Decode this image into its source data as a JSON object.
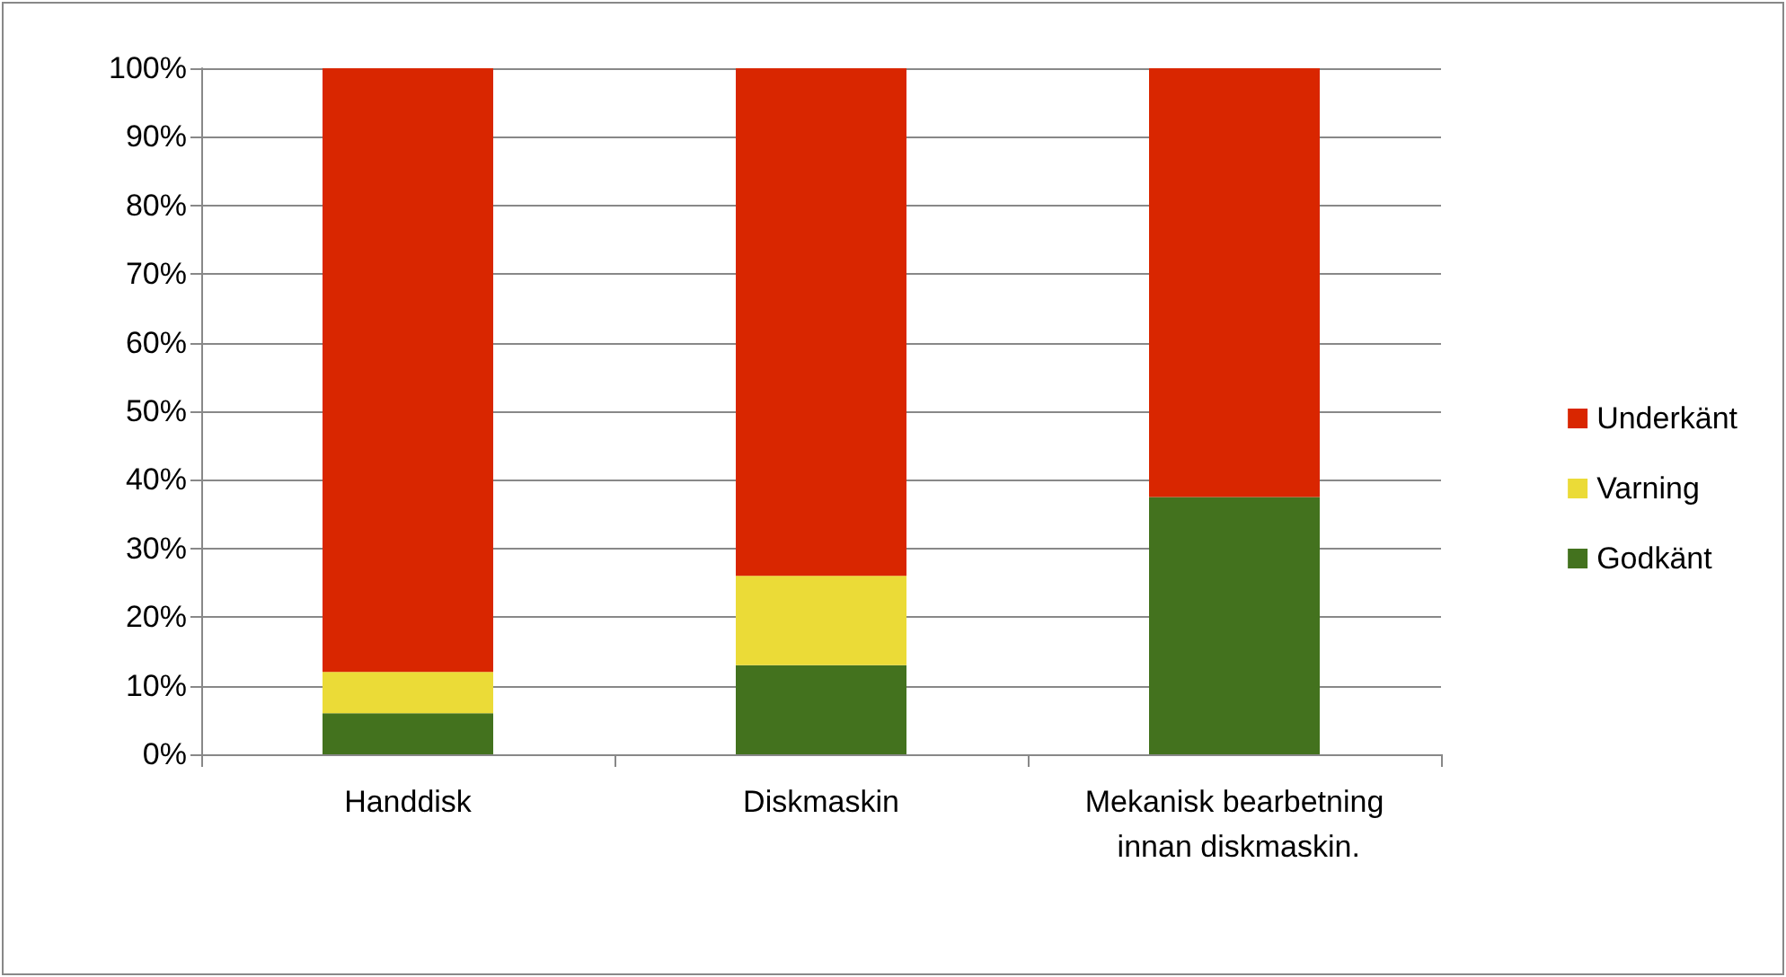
{
  "chart_data": {
    "type": "bar",
    "stacked": true,
    "categories": [
      "Handdisk",
      "Diskmaskin",
      "Mekanisk bearbetning innan diskmaskin."
    ],
    "series": [
      {
        "name": "Godkänt",
        "color": "#43721e",
        "values": [
          6,
          13,
          37.5
        ]
      },
      {
        "name": "Varning",
        "color": "#ebdb37",
        "values": [
          6,
          13,
          0
        ]
      },
      {
        "name": "Underkänt",
        "color": "#d92600",
        "values": [
          88,
          74,
          62.5
        ]
      }
    ],
    "ylim": [
      0,
      100
    ],
    "yticks": [
      {
        "value": 0,
        "label": "0%"
      },
      {
        "value": 10,
        "label": "10%"
      },
      {
        "value": 20,
        "label": "20%"
      },
      {
        "value": 30,
        "label": "30%"
      },
      {
        "value": 40,
        "label": "40%"
      },
      {
        "value": 50,
        "label": "50%"
      },
      {
        "value": 60,
        "label": "60%"
      },
      {
        "value": 70,
        "label": "70%"
      },
      {
        "value": 80,
        "label": "80%"
      },
      {
        "value": 90,
        "label": "90%"
      },
      {
        "value": 100,
        "label": "100%"
      }
    ],
    "grid": "y",
    "legend": "right"
  }
}
